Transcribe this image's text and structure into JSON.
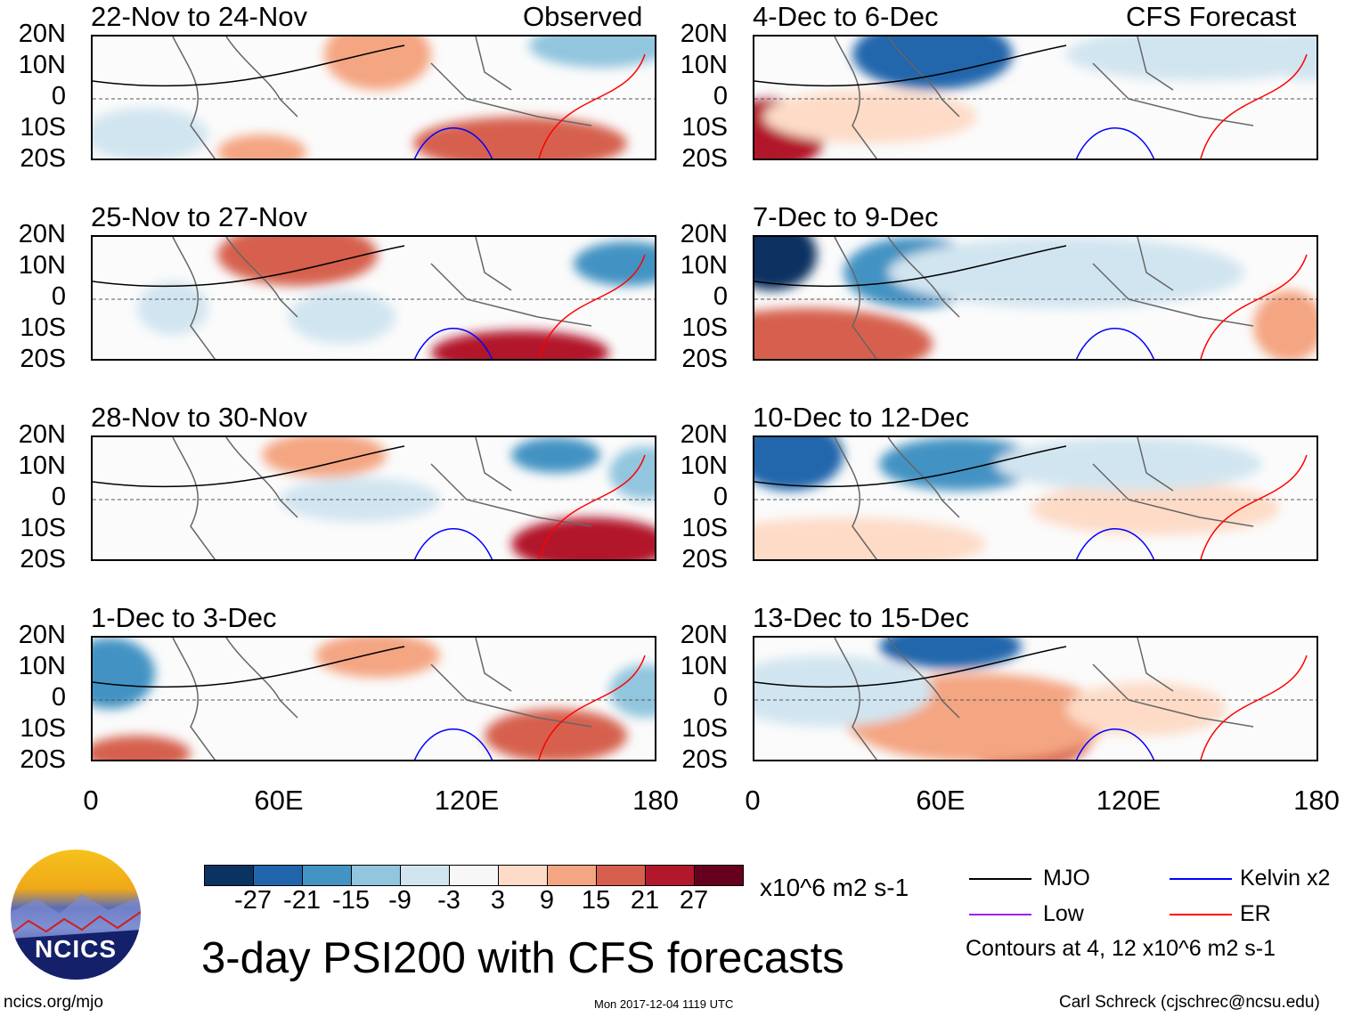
{
  "header": {
    "left_label": "Observed",
    "right_label": "CFS Forecast"
  },
  "panels_left": [
    {
      "title": "22-Nov to 24-Nov"
    },
    {
      "title": "25-Nov to 27-Nov"
    },
    {
      "title": "28-Nov to 30-Nov"
    },
    {
      "title": "1-Dec to 3-Dec"
    }
  ],
  "panels_right": [
    {
      "title": "4-Dec to 6-Dec"
    },
    {
      "title": "7-Dec to 9-Dec"
    },
    {
      "title": "10-Dec to 12-Dec"
    },
    {
      "title": "13-Dec to 15-Dec"
    }
  ],
  "lat_labels": [
    "20N",
    "10N",
    "0",
    "10S",
    "20S"
  ],
  "lon_labels": [
    "0",
    "60E",
    "120E",
    "180"
  ],
  "colorbar": {
    "colors": [
      "#0b3362",
      "#2166ac",
      "#4393c3",
      "#92c5de",
      "#d1e5f0",
      "#f7f7f7",
      "#fddbc7",
      "#f4a582",
      "#d6604d",
      "#b2182b",
      "#67001f"
    ],
    "ticks": [
      "-27",
      "-21",
      "-15",
      "-9",
      "-3",
      "3",
      "9",
      "15",
      "21",
      "27"
    ],
    "units": "x10^6 m2 s-1"
  },
  "legend": {
    "items": [
      {
        "label": "MJO",
        "color": "#000000"
      },
      {
        "label": "Kelvin x2",
        "color": "#0000ff"
      },
      {
        "label": "Low",
        "color": "#a020f0"
      },
      {
        "label": "ER",
        "color": "#ff0000"
      }
    ],
    "contours_note": "Contours at 4, 12 x10^6 m2 s-1"
  },
  "main_title": "3-day PSI200 with CFS forecasts",
  "logo": {
    "text": "NCICS"
  },
  "footer": {
    "url": "ncics.org/mjo",
    "timestamp": "Mon 2017-12-04 1119 UTC",
    "author": "Carl Schreck (cjschrec@ncsu.edu)"
  }
}
